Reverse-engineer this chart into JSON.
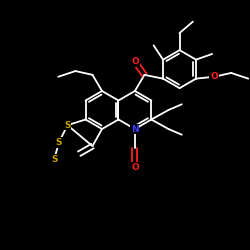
{
  "bg_color": "#000000",
  "bond_color": "#ffffff",
  "S_color": "#c8a000",
  "N_color": "#4040ff",
  "O_color": "#ff2020",
  "bond_width": 1.3,
  "figsize": [
    2.5,
    2.5
  ],
  "dpi": 100,
  "xlim": [
    0,
    250
  ],
  "ylim": [
    0,
    250
  ]
}
